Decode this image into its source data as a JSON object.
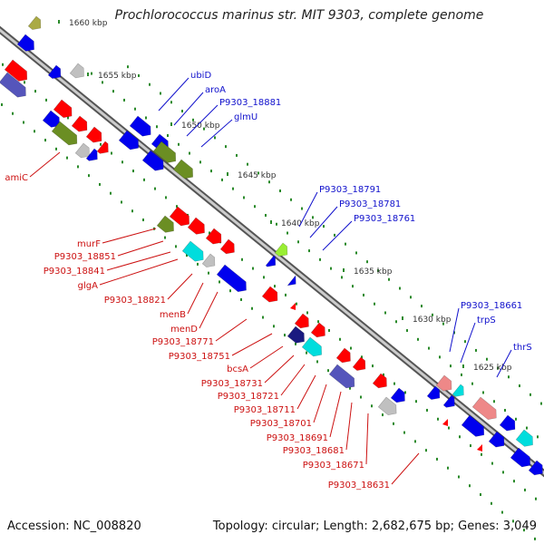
{
  "title": "Prochlorococcus marinus str. MIT 9303, complete genome",
  "footer": {
    "accession": "Accession: NC_008820",
    "summary": "Topology: circular; Length: 2,682,675 bp; Genes: 3,049"
  },
  "colors": {
    "backbone": "#888888",
    "tick": "#2a8a2a",
    "forward_label": "#1010cc",
    "reverse_label": "#cc1010",
    "gene_red": "#ff0000",
    "gene_blue": "#0000ee",
    "gene_cyan": "#00dddd",
    "gene_olive": "#6b8e23",
    "gene_gray": "#c0c0c0",
    "gene_pink": "#ee8888",
    "gene_purple": "#5555bb",
    "gene_navy": "#1a1a80",
    "gene_lime": "#99ee33",
    "gene_khaki": "#aaaa44"
  },
  "ticks": [
    "1660 kbp",
    "1655 kbp",
    "1650 kbp",
    "1645 kbp",
    "1640 kbp",
    "1635 kbp",
    "1630 kbp",
    "1625 kbp"
  ],
  "forward_labels": [
    "ubiD",
    "aroA",
    "P9303_18881",
    "glmU",
    "P9303_18791",
    "P9303_18781",
    "P9303_18761",
    "P9303_18661",
    "trpS",
    "thrS"
  ],
  "reverse_labels": [
    "amiC",
    "murF",
    "P9303_18851",
    "P9303_18841",
    "glgA",
    "P9303_18821",
    "menB",
    "menD",
    "P9303_18771",
    "P9303_18751",
    "bcsA",
    "P9303_18731",
    "P9303_18721",
    "P9303_18711",
    "P9303_18701",
    "P9303_18691",
    "P9303_18681",
    "P9303_18671",
    "P9303_18631"
  ]
}
